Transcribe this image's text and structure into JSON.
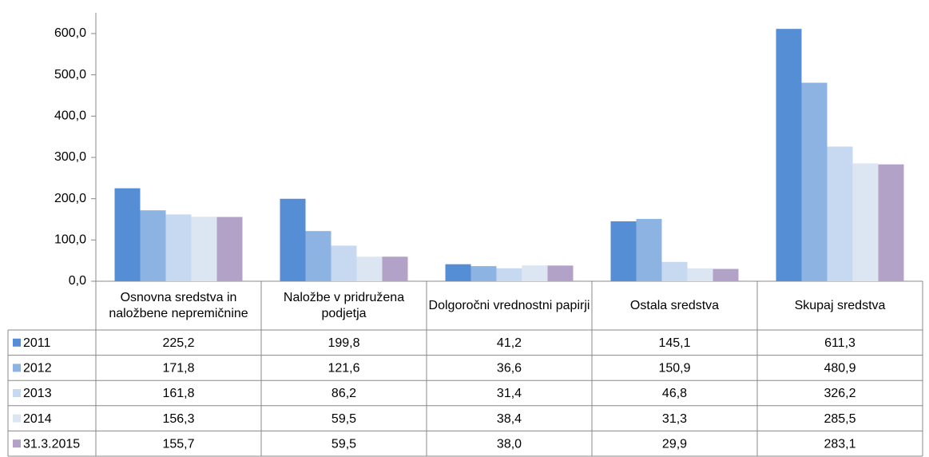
{
  "chart_data": {
    "type": "bar",
    "categories": [
      "Osnovna sredstva in naložbene nepremičnine",
      "Naložbe v pridružena podjetja",
      "Dolgoročni vrednostni papirji",
      "Ostala sredstva",
      "Skupaj sredstva"
    ],
    "series": [
      {
        "name": "2011",
        "color": "#558ed5",
        "values": [
          225.2,
          199.8,
          41.2,
          145.1,
          611.3
        ],
        "value_labels": [
          "225,2",
          "199,8",
          "41,2",
          "145,1",
          "611,3"
        ]
      },
      {
        "name": "2012",
        "color": "#8db3e2",
        "values": [
          171.8,
          121.6,
          36.6,
          150.9,
          480.9
        ],
        "value_labels": [
          "171,8",
          "121,6",
          "36,6",
          "150,9",
          "480,9"
        ]
      },
      {
        "name": "2013",
        "color": "#c6d9f1",
        "values": [
          161.8,
          86.2,
          31.4,
          46.8,
          326.2
        ],
        "value_labels": [
          "161,8",
          "86,2",
          "31,4",
          "46,8",
          "326,2"
        ]
      },
      {
        "name": "2014",
        "color": "#dce6f2",
        "values": [
          156.3,
          59.5,
          38.4,
          31.3,
          285.5
        ],
        "value_labels": [
          "156,3",
          "59,5",
          "38,4",
          "31,3",
          "285,5"
        ]
      },
      {
        "name": "31.3.2015",
        "color": "#b3a2c7",
        "values": [
          155.7,
          59.5,
          38.0,
          29.9,
          283.1
        ],
        "value_labels": [
          "155,7",
          "59,5",
          "38,0",
          "29,9",
          "283,1"
        ]
      }
    ],
    "ylim": [
      0,
      650
    ],
    "yticks": [
      {
        "value": 0,
        "label": "0,0"
      },
      {
        "value": 100,
        "label": "100,0"
      },
      {
        "value": 200,
        "label": "200,0"
      },
      {
        "value": 300,
        "label": "300,0"
      },
      {
        "value": 400,
        "label": "400,0"
      },
      {
        "value": 500,
        "label": "500,0"
      },
      {
        "value": 600,
        "label": "600,0"
      }
    ],
    "grid": false
  }
}
